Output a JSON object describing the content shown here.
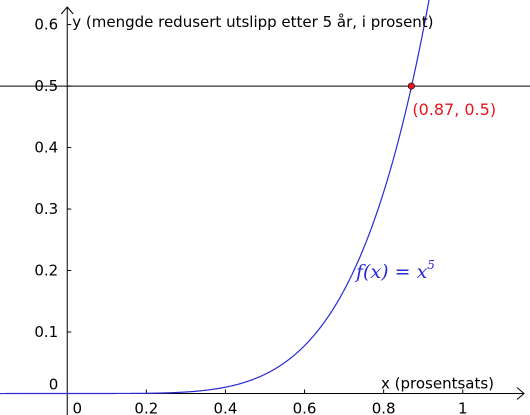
{
  "chart_data": {
    "type": "line",
    "xlabel": "x (prosentsats)",
    "ylabel": "y (mengde redusert utslipp etter 5 år, i prosent)",
    "xlim": [
      -0.17,
      1.17
    ],
    "ylim": [
      -0.035,
      0.64
    ],
    "x_ticks": [
      {
        "value": 0,
        "label": "0"
      },
      {
        "value": 0.2,
        "label": "0.2"
      },
      {
        "value": 0.4,
        "label": "0.4"
      },
      {
        "value": 0.6,
        "label": "0.6"
      },
      {
        "value": 0.8,
        "label": "0.8"
      },
      {
        "value": 1,
        "label": "1"
      }
    ],
    "y_ticks": [
      {
        "value": 0,
        "label": "0"
      },
      {
        "value": 0.1,
        "label": "0.1"
      },
      {
        "value": 0.2,
        "label": "0.2"
      },
      {
        "value": 0.3,
        "label": "0.3"
      },
      {
        "value": 0.4,
        "label": "0.4"
      },
      {
        "value": 0.5,
        "label": "0.5"
      },
      {
        "value": 0.6,
        "label": "0.6"
      }
    ],
    "series": [
      {
        "label_main": "f(x) = x",
        "label_exp": "5",
        "color": "#2a2ad6",
        "function_exponent": 5,
        "x_range": [
          -0.17,
          0.915
        ]
      }
    ],
    "horizontal_line": {
      "y": 0.5,
      "color": "#000000"
    },
    "point": {
      "x": 0.87,
      "y": 0.5,
      "label": "(0.87, 0.5)",
      "color": "#e8161a"
    },
    "grid": false
  }
}
